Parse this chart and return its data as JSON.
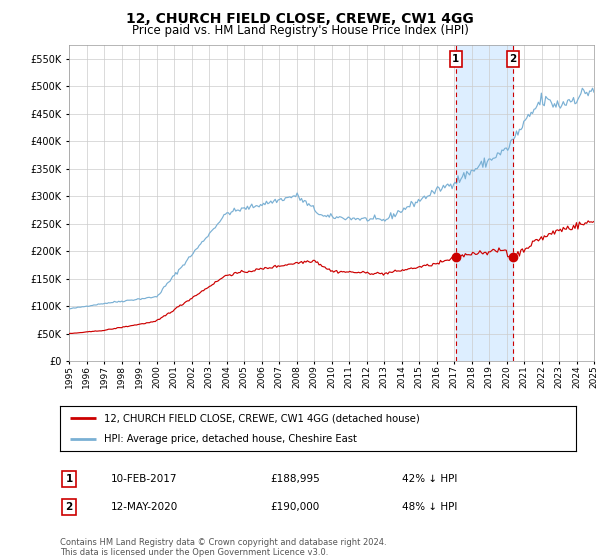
{
  "title": "12, CHURCH FIELD CLOSE, CREWE, CW1 4GG",
  "subtitle": "Price paid vs. HM Land Registry's House Price Index (HPI)",
  "title_fontsize": 10,
  "subtitle_fontsize": 8.5,
  "red_label": "12, CHURCH FIELD CLOSE, CREWE, CW1 4GG (detached house)",
  "blue_label": "HPI: Average price, detached house, Cheshire East",
  "annotation1_date": "10-FEB-2017",
  "annotation1_price": "£188,995",
  "annotation1_hpi": "42% ↓ HPI",
  "annotation2_date": "12-MAY-2020",
  "annotation2_price": "£190,000",
  "annotation2_hpi": "48% ↓ HPI",
  "footer": "Contains HM Land Registry data © Crown copyright and database right 2024.\nThis data is licensed under the Open Government Licence v3.0.",
  "red_color": "#cc0000",
  "blue_color": "#7ab0d4",
  "vline_color": "#cc0000",
  "shade_color": "#ddeeff",
  "grid_color": "#cccccc",
  "bg_color": "#f0f4f8",
  "ylim": [
    0,
    575000
  ],
  "yticks": [
    0,
    50000,
    100000,
    150000,
    200000,
    250000,
    300000,
    350000,
    400000,
    450000,
    500000,
    550000
  ],
  "sale1_year": 2017.1,
  "sale1_value": 188995,
  "sale2_year": 2020.36,
  "sale2_value": 190000,
  "xstart": 1995,
  "xend": 2025
}
